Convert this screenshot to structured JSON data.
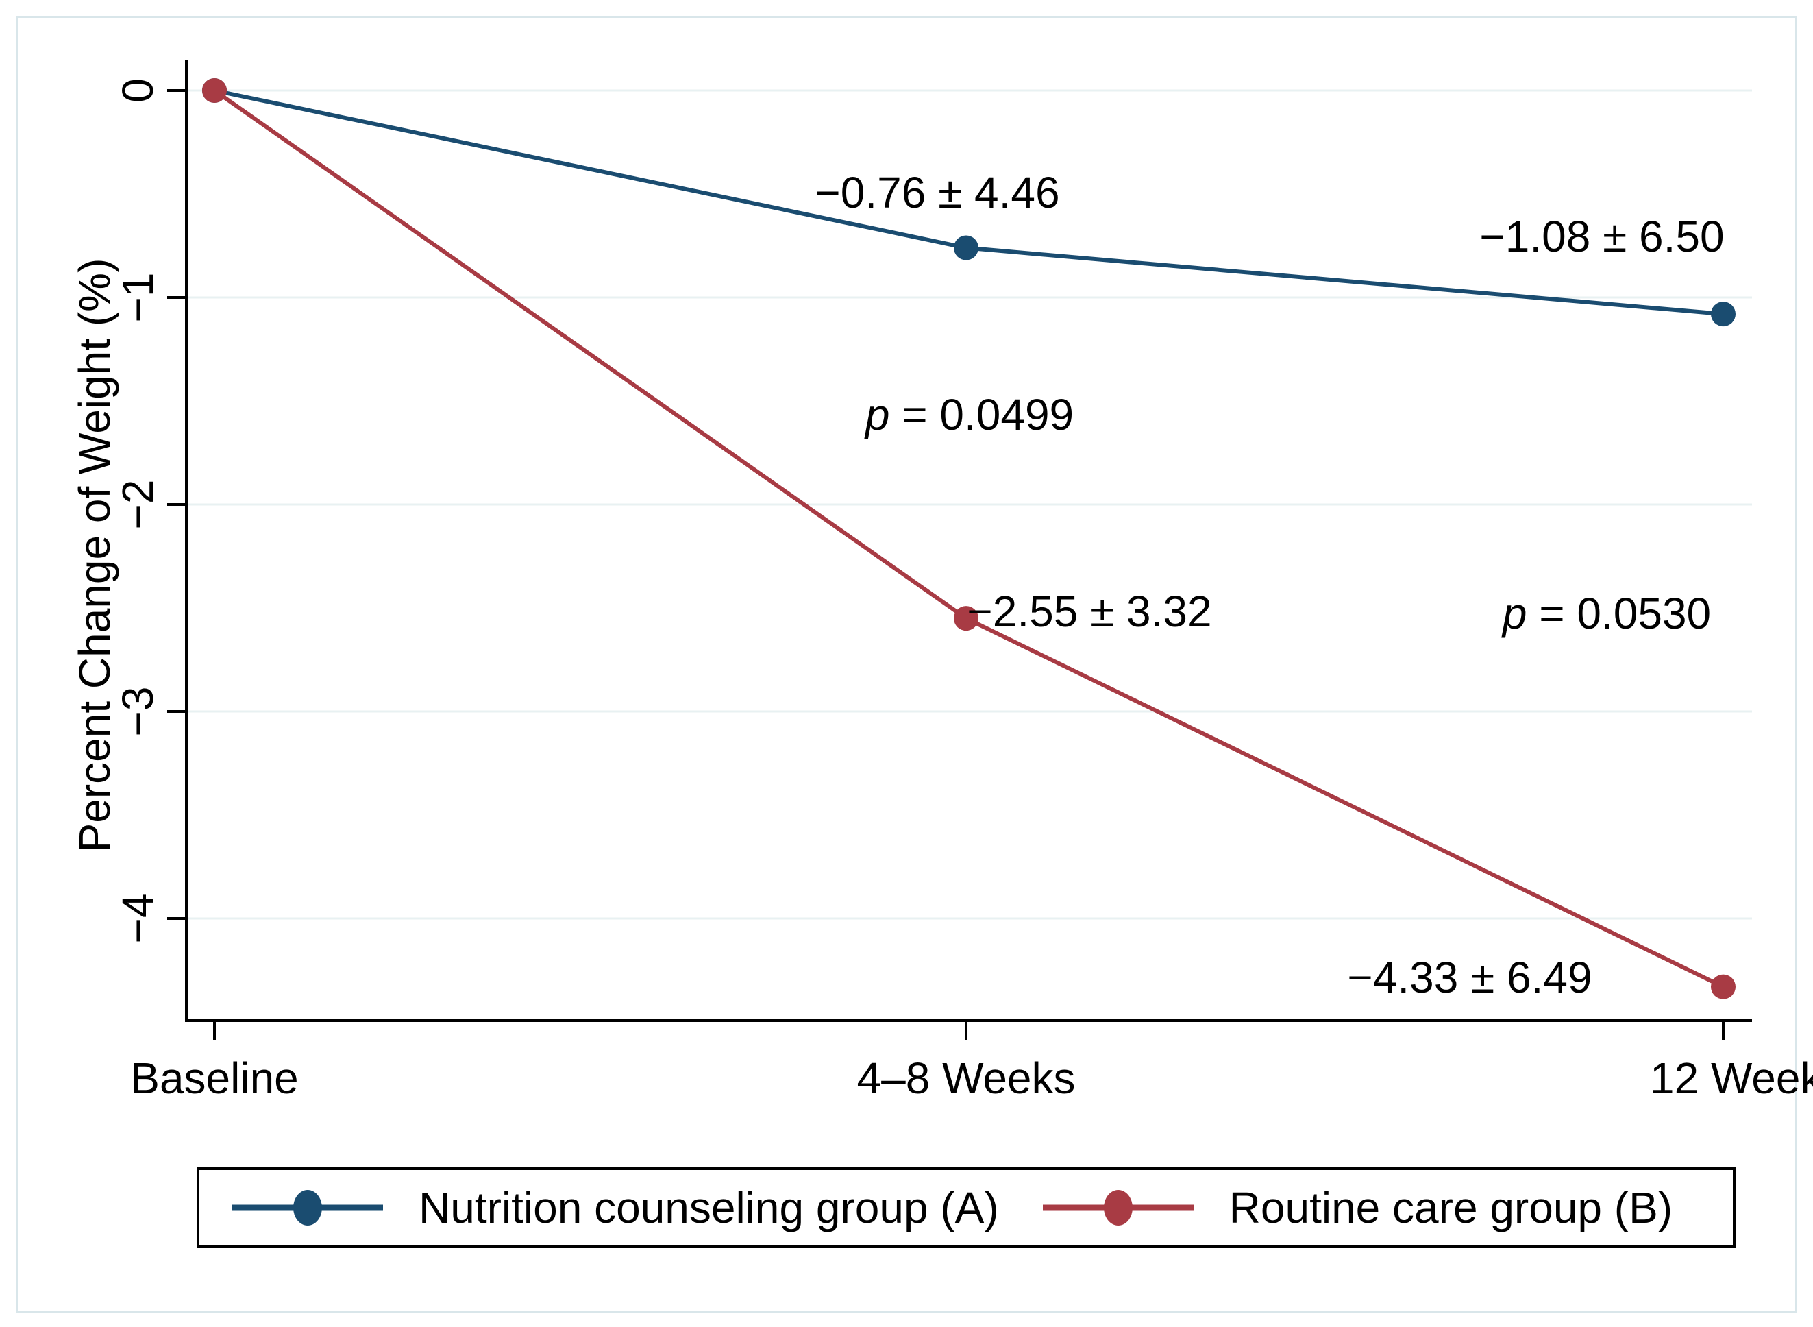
{
  "figure": {
    "background": "#ffffff",
    "border_color": "#d9e6ea",
    "axis_color": "#000000",
    "gridline_color": "#e8f1f2"
  },
  "chart_data": {
    "type": "line",
    "title": "",
    "xlabel": "",
    "ylabel": "Percent Change of Weight (%)",
    "categories": [
      "Baseline",
      "4–8 Weeks",
      "12 Week"
    ],
    "ytick_labels": [
      "0",
      "−1",
      "−2",
      "−3",
      "−4"
    ],
    "ytick_values": [
      0,
      -1,
      -2,
      -3,
      -4
    ],
    "ylim": [
      0.15,
      -4.5
    ],
    "grid": true,
    "legend_position": "bottom",
    "series": [
      {
        "name": "Nutrition counseling group (A)",
        "color": "#1a4c70",
        "values": [
          0,
          -0.76,
          -1.08
        ]
      },
      {
        "name": "Routine care group (B)",
        "color": "#a83b44",
        "values": [
          0,
          -2.55,
          -4.33
        ]
      }
    ],
    "annotations": [
      {
        "id": "a-mid",
        "text": "−0.76 ± 4.46"
      },
      {
        "id": "a-end",
        "text": "−1.08 ± 6.50"
      },
      {
        "id": "b-mid",
        "text": "−2.55 ± 3.32"
      },
      {
        "id": "b-end",
        "text": "−4.33 ± 6.49"
      },
      {
        "id": "p-mid",
        "p": "p",
        "text": " = 0.0499"
      },
      {
        "id": "p-end",
        "p": "p",
        "text": " = 0.0530"
      }
    ]
  }
}
